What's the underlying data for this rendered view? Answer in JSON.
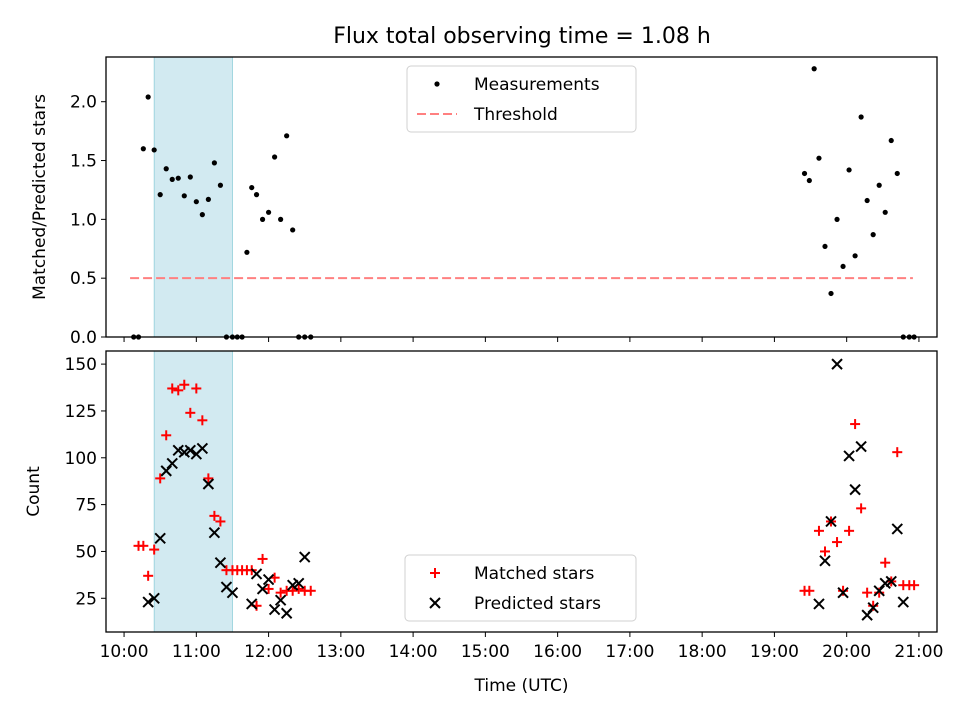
{
  "title": "Flux total observing time = 1.08 h",
  "chart_data": [
    {
      "type": "scatter",
      "ylabel": "Matched/Predicted stars",
      "ylim": [
        0,
        2.38
      ],
      "yticks": [
        "0.0",
        "0.5",
        "1.0",
        "1.5",
        "2.0"
      ],
      "grid": false,
      "legend_position": "top-center",
      "threshold": {
        "name": "Threshold",
        "value": 0.5,
        "x_range": [
          "10:05",
          "20:55"
        ],
        "color": "#ff8080",
        "style": "dashed"
      },
      "series": [
        {
          "name": "Measurements",
          "color": "#000000",
          "x": [
            "10:08",
            "10:12",
            "10:16",
            "10:20",
            "10:25",
            "10:30",
            "10:35",
            "10:40",
            "10:45",
            "10:50",
            "10:55",
            "11:00",
            "11:05",
            "11:10",
            "11:15",
            "11:20",
            "11:25",
            "11:30",
            "11:34",
            "11:38",
            "11:42",
            "11:46",
            "11:50",
            "11:55",
            "12:00",
            "12:05",
            "12:10",
            "12:15",
            "12:20",
            "12:25",
            "12:30",
            "12:35",
            "19:25",
            "19:29",
            "19:33",
            "19:37",
            "19:42",
            "19:47",
            "19:52",
            "19:57",
            "20:02",
            "20:07",
            "20:12",
            "20:17",
            "20:22",
            "20:27",
            "20:32",
            "20:37",
            "20:42",
            "20:47",
            "20:52",
            "20:56"
          ],
          "y": [
            0,
            0,
            1.6,
            2.04,
            1.59,
            1.21,
            1.43,
            1.34,
            1.35,
            1.2,
            1.36,
            1.15,
            1.04,
            1.17,
            1.48,
            1.29,
            0,
            0,
            0,
            0,
            0.72,
            1.27,
            1.21,
            1.0,
            1.06,
            1.53,
            1.0,
            1.71,
            0.91,
            0,
            0,
            0,
            1.39,
            1.33,
            2.28,
            1.52,
            0.77,
            0.37,
            1.0,
            0.6,
            1.42,
            0.69,
            1.87,
            1.16,
            0.87,
            1.29,
            1.06,
            1.67,
            1.39,
            0,
            0,
            0
          ]
        }
      ],
      "highlight_x_range": [
        "10:25",
        "11:30"
      ],
      "highlight_color": "#add8e6"
    },
    {
      "type": "scatter",
      "xlabel": "Time (UTC)",
      "ylabel": "Count",
      "ylim": [
        7,
        157
      ],
      "yticks": [
        "25",
        "50",
        "75",
        "100",
        "125",
        "150"
      ],
      "xticks": [
        "10:00",
        "11:00",
        "12:00",
        "13:00",
        "14:00",
        "15:00",
        "16:00",
        "17:00",
        "18:00",
        "19:00",
        "20:00",
        "21:00"
      ],
      "xlim": [
        "09:45",
        "21:15"
      ],
      "grid": false,
      "legend_position": "bottom-center",
      "highlight_x_range": [
        "10:25",
        "11:30"
      ],
      "highlight_color": "#add8e6",
      "series": [
        {
          "name": "Matched stars",
          "color": "#ff0000",
          "marker": "plus",
          "x": [
            "10:12",
            "10:16",
            "10:20",
            "10:25",
            "10:30",
            "10:35",
            "10:40",
            "10:45",
            "10:50",
            "10:55",
            "11:00",
            "11:05",
            "11:10",
            "11:15",
            "11:20",
            "11:25",
            "11:30",
            "11:34",
            "11:38",
            "11:42",
            "11:46",
            "11:50",
            "11:55",
            "12:00",
            "12:05",
            "12:10",
            "12:15",
            "12:20",
            "12:25",
            "12:30",
            "12:35",
            "19:25",
            "19:29",
            "19:37",
            "19:42",
            "19:47",
            "19:52",
            "19:57",
            "20:02",
            "20:07",
            "20:12",
            "20:17",
            "20:22",
            "20:27",
            "20:32",
            "20:37",
            "20:42",
            "20:47",
            "20:52",
            "20:56"
          ],
          "y": [
            53,
            53,
            37,
            51,
            89,
            112,
            137,
            136,
            139,
            124,
            137,
            120,
            89,
            69,
            66,
            40,
            40,
            40,
            40,
            40,
            40,
            21,
            46,
            30,
            36,
            28,
            29,
            29,
            30,
            29,
            29,
            29,
            29,
            61,
            50,
            66,
            55,
            29,
            61,
            118,
            73,
            28,
            21,
            28,
            44,
            34,
            103,
            32,
            32,
            32
          ]
        },
        {
          "name": "Predicted stars",
          "color": "#000000",
          "marker": "x",
          "x": [
            "10:20",
            "10:25",
            "10:30",
            "10:35",
            "10:40",
            "10:45",
            "10:50",
            "10:55",
            "11:00",
            "11:05",
            "11:10",
            "11:15",
            "11:20",
            "11:25",
            "11:30",
            "11:46",
            "11:50",
            "11:55",
            "12:00",
            "12:05",
            "12:10",
            "12:15",
            "12:20",
            "12:25",
            "12:30",
            "19:37",
            "19:42",
            "19:47",
            "19:52",
            "19:57",
            "20:02",
            "20:07",
            "20:12",
            "20:17",
            "20:22",
            "20:27",
            "20:32",
            "20:37",
            "20:42",
            "20:47"
          ],
          "y": [
            23,
            25,
            57,
            93,
            97,
            104,
            103,
            104,
            102,
            105,
            86,
            60,
            44,
            31,
            28,
            22,
            38,
            30,
            35,
            19,
            24,
            17,
            32,
            33,
            47,
            22,
            45,
            66,
            150,
            28,
            101,
            83,
            106,
            16,
            20,
            29,
            33,
            34,
            62,
            23
          ]
        }
      ]
    }
  ]
}
